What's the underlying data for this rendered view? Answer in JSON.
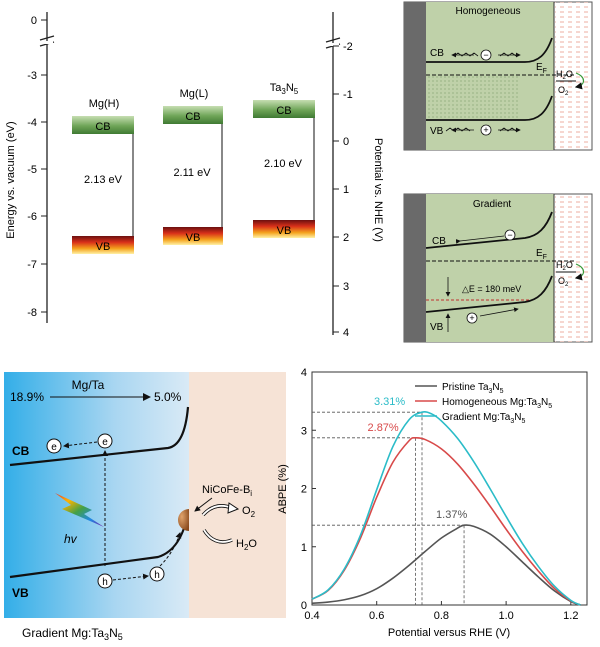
{
  "panel_a": {
    "left_axis": {
      "label": "Energy vs. vacuum (eV)",
      "ticks": [
        "0",
        "-3",
        "-4",
        "-5",
        "-6",
        "-7",
        "-8"
      ]
    },
    "right_axis": {
      "label": "Potential vs. NHE (V)",
      "ticks": [
        "-2",
        "-1",
        "0",
        "1",
        "2",
        "3",
        "4"
      ]
    },
    "samples": [
      {
        "name": "Mg(H)",
        "cb_label": "CB",
        "vb_label": "VB",
        "gap": "2.13 eV"
      },
      {
        "name": "Mg(L)",
        "cb_label": "CB",
        "vb_label": "VB",
        "gap": "2.11 eV"
      },
      {
        "name": "Ta3N5",
        "name_base": "Ta",
        "name_sub1": "3",
        "name_mid": "N",
        "name_sub2": "5",
        "cb_label": "CB",
        "vb_label": "VB",
        "gap": "2.10 eV"
      }
    ]
  },
  "panel_b": {
    "title": "Homogeneous",
    "cb": "CB",
    "vb": "VB",
    "ef": "E",
    "ef_sub": "F",
    "minus": "−",
    "plus": "+",
    "h2o": "H",
    "h2o_sub": "2",
    "h2o_end": "O",
    "o2": "O",
    "o2_sub": "2"
  },
  "panel_c": {
    "title": "Gradient",
    "cb": "CB",
    "vb": "VB",
    "ef": "E",
    "ef_sub": "F",
    "delta_e": "△E = 180 meV",
    "minus": "−",
    "plus": "+",
    "h2o": "H",
    "h2o_sub": "2",
    "h2o_end": "O",
    "o2": "O",
    "o2_sub": "2"
  },
  "panel_d": {
    "mg_ta": "Mg/Ta",
    "left_pct": "18.9%",
    "right_pct": "5.0%",
    "cb": "CB",
    "vb": "VB",
    "e": "e",
    "h": "h",
    "hv": "hv",
    "catalyst": "NiCoFe-B",
    "catalyst_sub": "i",
    "o2": "O",
    "o2_sub": "2",
    "h2o": "H",
    "h2o_sub": "2",
    "h2o_end": "O",
    "caption": "Gradient Mg:Ta",
    "caption_sub1": "3",
    "caption_mid": "N",
    "caption_sub2": "5"
  },
  "chart_data": {
    "type": "line",
    "xlabel": "Potential versus RHE (V)",
    "ylabel": "ABPE (%)",
    "xlim": [
      0.4,
      1.25
    ],
    "ylim": [
      0,
      4
    ],
    "xticks": [
      "0.4",
      "0.6",
      "0.8",
      "1.0",
      "1.2"
    ],
    "yticks": [
      "0",
      "1",
      "2",
      "3",
      "4"
    ],
    "legend_position": "top-right",
    "series": [
      {
        "name": "Pristine Ta3N5",
        "legend_base": "Pristine Ta",
        "legend_s1": "3",
        "legend_mid": "N",
        "legend_s2": "5",
        "color": "#555555",
        "peak_x": 0.87,
        "peak_y": 1.37,
        "peak_label": "1.37%",
        "x": [
          0.4,
          0.45,
          0.5,
          0.55,
          0.6,
          0.65,
          0.7,
          0.75,
          0.8,
          0.85,
          0.87,
          0.9,
          0.95,
          1.0,
          1.05,
          1.1,
          1.15,
          1.2,
          1.23
        ],
        "y": [
          0.03,
          0.05,
          0.09,
          0.16,
          0.28,
          0.46,
          0.68,
          0.92,
          1.15,
          1.32,
          1.37,
          1.35,
          1.22,
          1.0,
          0.74,
          0.48,
          0.24,
          0.06,
          0.0
        ]
      },
      {
        "name": "Homogeneous Mg:Ta3N5",
        "legend_base": "Homogeneous Mg:Ta",
        "legend_s1": "3",
        "legend_mid": "N",
        "legend_s2": "5",
        "color": "#d84a4a",
        "peak_x": 0.72,
        "peak_y": 2.87,
        "peak_label": "2.87%",
        "x": [
          0.4,
          0.45,
          0.5,
          0.55,
          0.6,
          0.65,
          0.7,
          0.72,
          0.75,
          0.8,
          0.85,
          0.9,
          0.95,
          1.0,
          1.05,
          1.1,
          1.15,
          1.2,
          1.23
        ],
        "y": [
          0.1,
          0.25,
          0.6,
          1.15,
          1.85,
          2.45,
          2.82,
          2.87,
          2.84,
          2.68,
          2.42,
          2.08,
          1.7,
          1.3,
          0.92,
          0.58,
          0.28,
          0.07,
          0.0
        ]
      },
      {
        "name": "Gradient Mg:Ta3N5",
        "legend_base": "Gradient Mg:Ta",
        "legend_s1": "3",
        "legend_mid": "N",
        "legend_s2": "5",
        "color": "#2bbcc8",
        "peak_x": 0.74,
        "peak_y": 3.31,
        "peak_label": "3.31%",
        "x": [
          0.4,
          0.45,
          0.5,
          0.55,
          0.6,
          0.65,
          0.7,
          0.74,
          0.77,
          0.8,
          0.85,
          0.9,
          0.95,
          1.0,
          1.05,
          1.1,
          1.15,
          1.2,
          1.23
        ],
        "y": [
          0.1,
          0.26,
          0.62,
          1.2,
          1.98,
          2.72,
          3.18,
          3.31,
          3.28,
          3.16,
          2.86,
          2.46,
          2.0,
          1.52,
          1.06,
          0.66,
          0.32,
          0.08,
          0.0
        ]
      }
    ]
  }
}
